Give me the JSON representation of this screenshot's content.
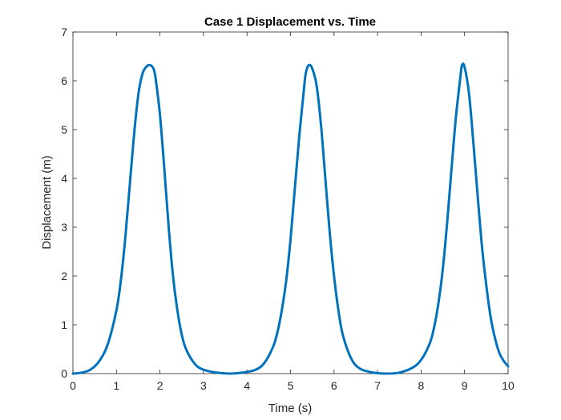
{
  "chart_data": {
    "type": "line",
    "title": "Case 1 Displacement vs. Time",
    "xlabel": "Time (s)",
    "ylabel": "Displacement (m)",
    "xlim": [
      0,
      10
    ],
    "ylim": [
      0,
      7
    ],
    "xticks": [
      "0",
      "1",
      "2",
      "3",
      "4",
      "5",
      "6",
      "7",
      "8",
      "9",
      "10"
    ],
    "yticks": [
      "0",
      "1",
      "2",
      "3",
      "4",
      "5",
      "6",
      "7"
    ],
    "grid": false,
    "line_color": "#0072BD",
    "series": [
      {
        "x": [
          0,
          0.2,
          0.4,
          0.6,
          0.8,
          1.0,
          1.1,
          1.2,
          1.3,
          1.4,
          1.5,
          1.6,
          1.7,
          1.78,
          1.85,
          1.9,
          2.0,
          2.1,
          2.2,
          2.3,
          2.4,
          2.5,
          2.6,
          2.8,
          3.0,
          3.3,
          3.6,
          3.9,
          4.2,
          4.4,
          4.6,
          4.7,
          4.8,
          4.9,
          5.0,
          5.1,
          5.2,
          5.3,
          5.35,
          5.42,
          5.5,
          5.6,
          5.7,
          5.8,
          5.9,
          6.0,
          6.1,
          6.2,
          6.4,
          6.6,
          6.9,
          7.2,
          7.5,
          7.8,
          8.0,
          8.2,
          8.3,
          8.4,
          8.5,
          8.6,
          8.7,
          8.8,
          8.9,
          8.94,
          9.0,
          9.1,
          9.2,
          9.3,
          9.4,
          9.5,
          9.6,
          9.7,
          9.8,
          9.9,
          10.0
        ],
        "y": [
          0.0,
          0.02,
          0.08,
          0.25,
          0.6,
          1.3,
          1.9,
          2.75,
          3.8,
          4.85,
          5.7,
          6.15,
          6.3,
          6.32,
          6.25,
          6.05,
          5.3,
          4.2,
          3.0,
          2.0,
          1.3,
          0.8,
          0.5,
          0.2,
          0.08,
          0.02,
          0.0,
          0.02,
          0.08,
          0.22,
          0.55,
          0.85,
          1.3,
          1.9,
          2.75,
          3.8,
          4.85,
          5.75,
          6.15,
          6.32,
          6.25,
          5.9,
          5.1,
          4.0,
          2.9,
          2.0,
          1.3,
          0.8,
          0.3,
          0.1,
          0.02,
          0.0,
          0.02,
          0.12,
          0.28,
          0.62,
          0.95,
          1.45,
          2.15,
          3.1,
          4.2,
          5.25,
          6.05,
          6.32,
          6.28,
          5.75,
          4.75,
          3.65,
          2.6,
          1.8,
          1.15,
          0.72,
          0.42,
          0.26,
          0.15
        ]
      }
    ]
  }
}
